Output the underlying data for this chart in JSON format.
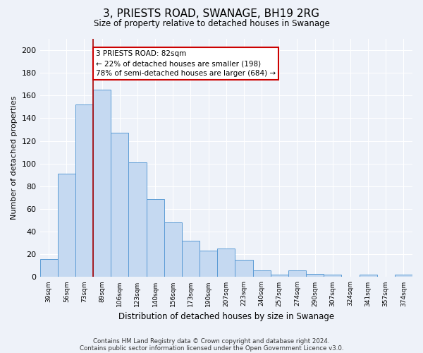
{
  "title": "3, PRIESTS ROAD, SWANAGE, BH19 2RG",
  "subtitle": "Size of property relative to detached houses in Swanage",
  "xlabel": "Distribution of detached houses by size in Swanage",
  "ylabel": "Number of detached properties",
  "bar_labels": [
    "39sqm",
    "56sqm",
    "73sqm",
    "89sqm",
    "106sqm",
    "123sqm",
    "140sqm",
    "156sqm",
    "173sqm",
    "190sqm",
    "207sqm",
    "223sqm",
    "240sqm",
    "257sqm",
    "274sqm",
    "290sqm",
    "307sqm",
    "324sqm",
    "341sqm",
    "357sqm",
    "374sqm"
  ],
  "bar_values": [
    16,
    91,
    152,
    165,
    127,
    101,
    69,
    48,
    32,
    23,
    25,
    15,
    6,
    2,
    6,
    3,
    2,
    0,
    2,
    0,
    2
  ],
  "bar_color": "#c5d9f1",
  "bar_edge_color": "#5b9bd5",
  "vline_x_index": 3,
  "vline_color": "#aa0000",
  "annotation_text": "3 PRIESTS ROAD: 82sqm\n← 22% of detached houses are smaller (198)\n78% of semi-detached houses are larger (684) →",
  "annotation_box_color": "#ffffff",
  "annotation_box_edge": "#cc0000",
  "ylim": [
    0,
    210
  ],
  "yticks": [
    0,
    20,
    40,
    60,
    80,
    100,
    120,
    140,
    160,
    180,
    200
  ],
  "footer_line1": "Contains HM Land Registry data © Crown copyright and database right 2024.",
  "footer_line2": "Contains public sector information licensed under the Open Government Licence v3.0.",
  "bg_color": "#eef2f9",
  "plot_bg_color": "#eef2f9",
  "grid_color": "#ffffff"
}
